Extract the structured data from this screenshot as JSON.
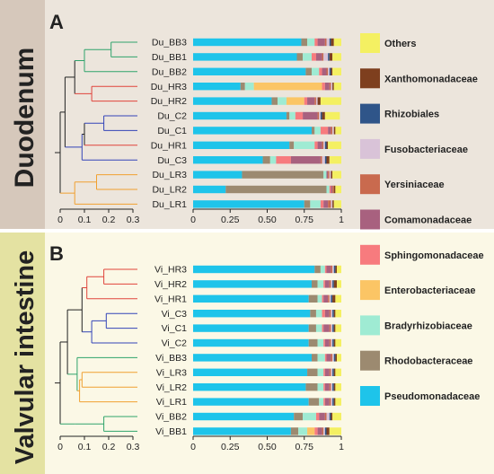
{
  "colors": {
    "Pseudomonadaceae": "#1EC4EA",
    "Rhodobacteraceae": "#9C8A70",
    "Bradyrhizobiaceae": "#9FEBD3",
    "Enterobacteriaceae": "#FBC565",
    "Sphingomonadaceae": "#F77B7E",
    "Comamonadaceae": "#A8617F",
    "Yersiniaceae": "#C96A4E",
    "Fusobacteriaceae": "#D9C3D8",
    "Rhizobiales": "#2F5589",
    "Xanthomonadaceae": "#7E3F1E",
    "Others": "#F4F062",
    "green_branch": "#2FA36B",
    "red_branch": "#E0443B",
    "blue_branch": "#3344B8",
    "orange_branch": "#F0A030",
    "duodenum_bg": "#ECE5DC",
    "duodenum_side": "#D6C8BB",
    "valvular_bg": "#FBF8E6",
    "valvular_side": "#E4E2A2"
  },
  "labels": {
    "panel_a": "A",
    "panel_b": "B",
    "duodenum": "Duodenum",
    "valvular": "Valvular intestine"
  },
  "legend": [
    "Others",
    "Xanthomonadaceae",
    "Rhizobiales",
    "Fusobacteriaceae",
    "Yersiniaceae",
    "Comamonadaceae",
    "Sphingomonadaceae",
    "Enterobacteriaceae",
    "Bradyrhizobiaceae",
    "Rhodobacteraceae",
    "Pseudomonadaceae"
  ],
  "chart_data": [
    {
      "type": "bar",
      "panel": "A",
      "orientation": "horizontal-stacked",
      "xlim": [
        0,
        1
      ],
      "xticks": [
        "0",
        "0.25",
        "0.50",
        "0.75",
        "1"
      ],
      "tree_ticks": [
        "0",
        "0.1",
        "0.2",
        "0.3"
      ],
      "categories": [
        "Du_BB3",
        "Du_BB1",
        "Du_BB2",
        "Du_HR3",
        "Du_HR2",
        "Du_C2",
        "Du_C1",
        "Du_HR1",
        "Du_C3",
        "Du_LR3",
        "Du_LR2",
        "Du_LR1"
      ],
      "series": [
        {
          "name": "Pseudomonadaceae",
          "values": [
            0.73,
            0.7,
            0.76,
            0.32,
            0.53,
            0.63,
            0.8,
            0.65,
            0.47,
            0.33,
            0.22,
            0.75
          ]
        },
        {
          "name": "Rhodobacteraceae",
          "values": [
            0.04,
            0.04,
            0.04,
            0.03,
            0.04,
            0.02,
            0.02,
            0.03,
            0.05,
            0.55,
            0.68,
            0.04
          ]
        },
        {
          "name": "Bradyrhizobiaceae",
          "values": [
            0.05,
            0.06,
            0.05,
            0.06,
            0.06,
            0.04,
            0.04,
            0.14,
            0.04,
            0.02,
            0.02,
            0.07
          ]
        },
        {
          "name": "Enterobacteriaceae",
          "values": [
            0.0,
            0.0,
            0.0,
            0.46,
            0.12,
            0.0,
            0.0,
            0.0,
            0.0,
            0.0,
            0.0,
            0.0
          ]
        },
        {
          "name": "Sphingomonadaceae",
          "values": [
            0.02,
            0.03,
            0.02,
            0.02,
            0.02,
            0.05,
            0.05,
            0.02,
            0.1,
            0.0,
            0.01,
            0.02
          ]
        },
        {
          "name": "Comamonadaceae",
          "values": [
            0.05,
            0.04,
            0.03,
            0.03,
            0.05,
            0.1,
            0.02,
            0.03,
            0.2,
            0.01,
            0.01,
            0.03
          ]
        },
        {
          "name": "Yersiniaceae",
          "values": [
            0.01,
            0.01,
            0.01,
            0.01,
            0.01,
            0.01,
            0.01,
            0.01,
            0.01,
            0.01,
            0.01,
            0.02
          ]
        },
        {
          "name": "Fusobacteriaceae",
          "values": [
            0.02,
            0.03,
            0.01,
            0.01,
            0.01,
            0.01,
            0.01,
            0.01,
            0.02,
            0.01,
            0.0,
            0.01
          ]
        },
        {
          "name": "Rhizobiales",
          "values": [
            0.01,
            0.01,
            0.01,
            0.0,
            0.0,
            0.01,
            0.0,
            0.01,
            0.01,
            0.0,
            0.0,
            0.0
          ]
        },
        {
          "name": "Xanthomonadaceae",
          "values": [
            0.02,
            0.02,
            0.01,
            0.01,
            0.02,
            0.02,
            0.01,
            0.01,
            0.02,
            0.01,
            0.01,
            0.01
          ]
        },
        {
          "name": "Others",
          "values": [
            0.05,
            0.06,
            0.06,
            0.05,
            0.14,
            0.1,
            0.04,
            0.09,
            0.08,
            0.06,
            0.04,
            0.05
          ]
        }
      ]
    },
    {
      "type": "bar",
      "panel": "B",
      "orientation": "horizontal-stacked",
      "xlim": [
        0,
        1
      ],
      "xticks": [
        "0",
        "0.25",
        "0.50",
        "0.75",
        "1"
      ],
      "tree_ticks": [
        "0",
        "0.1",
        "0.2",
        "0.3"
      ],
      "categories": [
        "Vi_HR3",
        "Vi_HR2",
        "Vi_HR1",
        "Vi_C3",
        "Vi_C1",
        "Vi_C2",
        "Vi_BB3",
        "Vi_LR3",
        "Vi_LR2",
        "Vi_LR1",
        "Vi_BB2",
        "Vi_BB1"
      ],
      "series": [
        {
          "name": "Pseudomonadaceae",
          "values": [
            0.82,
            0.8,
            0.78,
            0.79,
            0.78,
            0.78,
            0.8,
            0.77,
            0.76,
            0.78,
            0.68,
            0.66
          ]
        },
        {
          "name": "Rhodobacteraceae",
          "values": [
            0.04,
            0.04,
            0.06,
            0.04,
            0.05,
            0.06,
            0.04,
            0.07,
            0.08,
            0.07,
            0.06,
            0.05
          ]
        },
        {
          "name": "Bradyrhizobiaceae",
          "values": [
            0.03,
            0.04,
            0.03,
            0.04,
            0.04,
            0.04,
            0.05,
            0.04,
            0.04,
            0.03,
            0.09,
            0.06
          ]
        },
        {
          "name": "Enterobacteriaceae",
          "values": [
            0.0,
            0.0,
            0.0,
            0.0,
            0.0,
            0.0,
            0.0,
            0.0,
            0.0,
            0.0,
            0.0,
            0.05
          ]
        },
        {
          "name": "Sphingomonadaceae",
          "values": [
            0.01,
            0.01,
            0.01,
            0.02,
            0.01,
            0.01,
            0.01,
            0.01,
            0.01,
            0.01,
            0.02,
            0.02
          ]
        },
        {
          "name": "Comamonadaceae",
          "values": [
            0.03,
            0.03,
            0.03,
            0.03,
            0.04,
            0.03,
            0.03,
            0.03,
            0.03,
            0.03,
            0.04,
            0.03
          ]
        },
        {
          "name": "Yersiniaceae",
          "values": [
            0.01,
            0.01,
            0.01,
            0.01,
            0.01,
            0.01,
            0.01,
            0.01,
            0.01,
            0.01,
            0.01,
            0.01
          ]
        },
        {
          "name": "Fusobacteriaceae",
          "values": [
            0.01,
            0.01,
            0.01,
            0.01,
            0.01,
            0.01,
            0.01,
            0.01,
            0.01,
            0.01,
            0.02,
            0.01
          ]
        },
        {
          "name": "Rhizobiales",
          "values": [
            0.01,
            0.01,
            0.01,
            0.01,
            0.01,
            0.01,
            0.01,
            0.01,
            0.01,
            0.01,
            0.01,
            0.01
          ]
        },
        {
          "name": "Xanthomonadaceae",
          "values": [
            0.01,
            0.02,
            0.02,
            0.01,
            0.01,
            0.01,
            0.01,
            0.01,
            0.01,
            0.01,
            0.01,
            0.02
          ]
        },
        {
          "name": "Others",
          "values": [
            0.03,
            0.03,
            0.04,
            0.04,
            0.04,
            0.04,
            0.03,
            0.04,
            0.04,
            0.04,
            0.06,
            0.08
          ]
        }
      ]
    }
  ]
}
